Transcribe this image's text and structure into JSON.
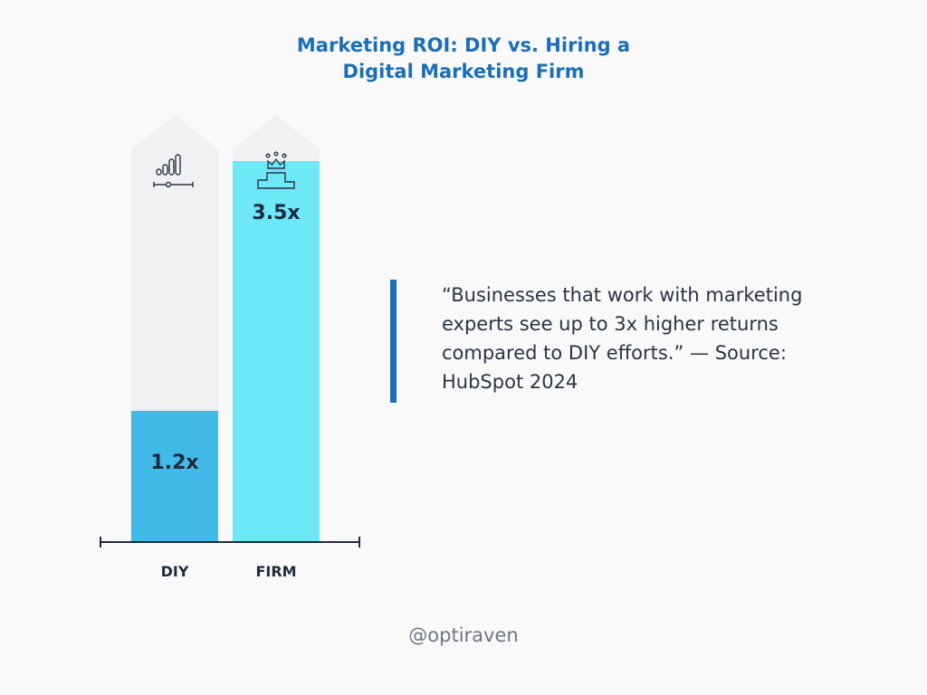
{
  "title_line1": "Marketing ROI: DIY vs. Hiring a",
  "title_line2": "Digital Marketing Firm",
  "quote": "“Businesses that work with marketing experts see up to 3x higher returns compared to DIY efforts.” — Source: HubSpot 2024",
  "handle": "@optiraven",
  "colors": {
    "title": "#1b6fb8",
    "accent_bar": "#1b6fb8",
    "column_background": "#f0f1f3",
    "diy_bar": "#41bae7",
    "firm_bar": "#6ee7f7",
    "text_dark": "#1e2b3f"
  },
  "chart_data": {
    "type": "bar",
    "categories": [
      "DIY",
      "FIRM"
    ],
    "values": [
      1.2,
      3.5
    ],
    "value_labels": [
      "1.2x",
      "3.5x"
    ],
    "icons": [
      "bar-chart-icon",
      "podium-crown-icon"
    ],
    "ylim": [
      0,
      5.6
    ],
    "grid": false
  }
}
